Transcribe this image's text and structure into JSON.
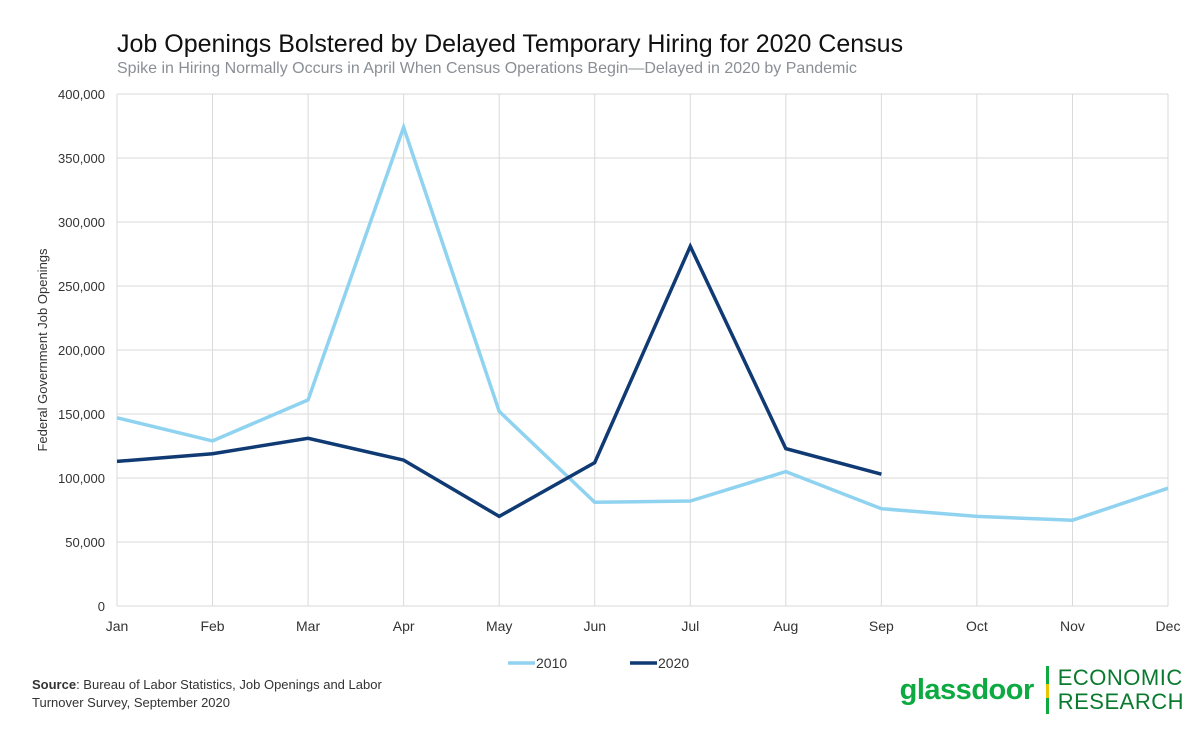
{
  "chart_data": {
    "type": "line",
    "title": "Job Openings Bolstered by Delayed Temporary Hiring for 2020 Census",
    "subtitle": "Spike in Hiring Normally Occurs in April When Census Operations Begin—Delayed in 2020 by Pandemic",
    "xlabel": "",
    "ylabel": "Federal Government Job Openings",
    "ylim": [
      0,
      400000
    ],
    "yticks": [
      0,
      50000,
      100000,
      150000,
      200000,
      250000,
      300000,
      350000,
      400000
    ],
    "ytick_labels": [
      "0",
      "50,000",
      "100,000",
      "150,000",
      "200,000",
      "250,000",
      "300,000",
      "350,000",
      "400,000"
    ],
    "grid": true,
    "legend_position": "bottom-center",
    "categories": [
      "Jan",
      "Feb",
      "Mar",
      "Apr",
      "May",
      "Jun",
      "Jul",
      "Aug",
      "Sep",
      "Oct",
      "Nov",
      "Dec"
    ],
    "series": [
      {
        "name": "2010",
        "color": "#8fd3f0",
        "values": [
          147000,
          129000,
          161000,
          374000,
          152000,
          81000,
          82000,
          105000,
          76000,
          70000,
          67000,
          92000
        ]
      },
      {
        "name": "2020",
        "color": "#0f3a73",
        "values": [
          113000,
          119000,
          131000,
          114000,
          70000,
          112000,
          281000,
          123000,
          103000,
          null,
          null,
          null
        ]
      }
    ]
  },
  "footer": {
    "source_label": "Source",
    "source_text": ": Bureau of Labor Statistics, Job Openings and Labor Turnover Survey, September 2020"
  },
  "brand": {
    "wordmark": "glassdoor",
    "line1": "ECONOMIC",
    "line2": "RESEARCH",
    "color": "#0caa41"
  }
}
